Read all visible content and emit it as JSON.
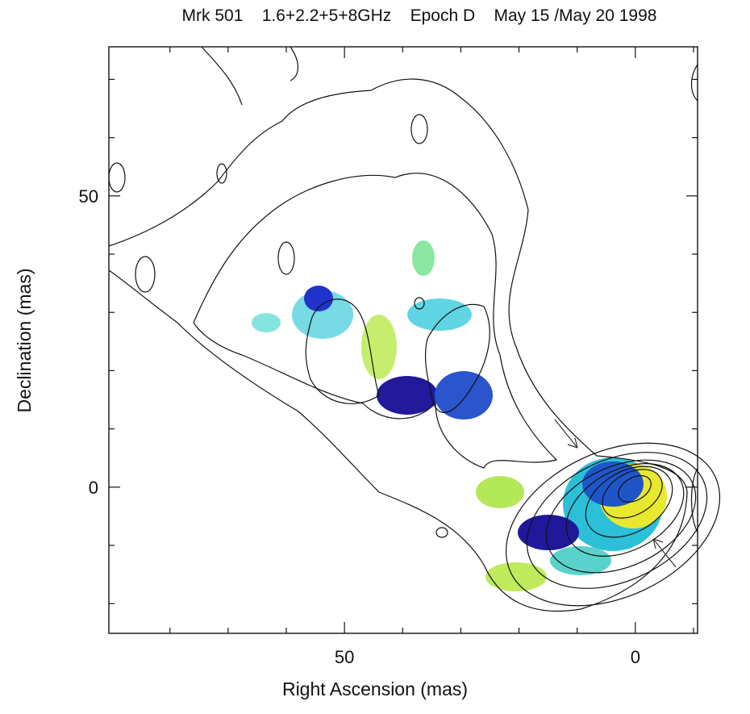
{
  "chart_data": {
    "type": "contour-map",
    "title": "Mrk 501    1.6+2.2+5+8GHz    Epoch D    May 15 /May 20 1998",
    "xlabel": "Right Ascension (mas)",
    "ylabel": "Declination (mas)",
    "xlim": [
      90.5,
      -10.7
    ],
    "xticks": [
      50,
      0
    ],
    "xminor_ticks": [
      80,
      70,
      60,
      40,
      30,
      20,
      10,
      -10
    ],
    "ylim": [
      -25.1,
      75.6
    ],
    "yticks": [
      0,
      50
    ],
    "yminor_ticks": [
      -20,
      -10,
      10,
      20,
      30,
      40,
      60,
      70
    ]
  }
}
